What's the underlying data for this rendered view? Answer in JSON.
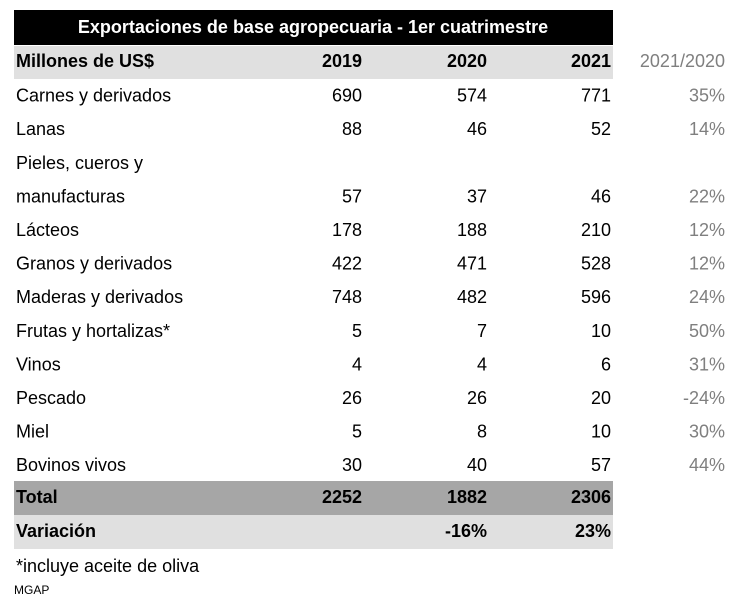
{
  "title": "Exportaciones de base agropecuaria - 1er cuatrimestre",
  "table": {
    "header": {
      "label": "Millones de US$",
      "y2019": "2019",
      "y2020": "2020",
      "y2021": "2021",
      "ratio": "2021/2020"
    },
    "rows": [
      {
        "label": [
          "Carnes y derivados"
        ],
        "y2019": "690",
        "y2020": "574",
        "y2021": "771",
        "ratio": "35%"
      },
      {
        "label": [
          "Lanas"
        ],
        "y2019": "88",
        "y2020": "46",
        "y2021": "52",
        "ratio": "14%"
      },
      {
        "label": [
          "Pieles, cueros y",
          "manufacturas"
        ],
        "y2019": "57",
        "y2020": "37",
        "y2021": "46",
        "ratio": "22%"
      },
      {
        "label": [
          "Lácteos"
        ],
        "y2019": "178",
        "y2020": "188",
        "y2021": "210",
        "ratio": "12%"
      },
      {
        "label": [
          "Granos y derivados"
        ],
        "y2019": "422",
        "y2020": "471",
        "y2021": "528",
        "ratio": "12%"
      },
      {
        "label": [
          "Maderas y derivados"
        ],
        "y2019": "748",
        "y2020": "482",
        "y2021": "596",
        "ratio": "24%"
      },
      {
        "label": [
          "Frutas y hortalizas*"
        ],
        "y2019": "5",
        "y2020": "7",
        "y2021": "10",
        "ratio": "50%"
      },
      {
        "label": [
          "Vinos"
        ],
        "y2019": "4",
        "y2020": "4",
        "y2021": "6",
        "ratio": "31%"
      },
      {
        "label": [
          "Pescado"
        ],
        "y2019": "26",
        "y2020": "26",
        "y2021": "20",
        "ratio": "-24%"
      },
      {
        "label": [
          "Miel"
        ],
        "y2019": "5",
        "y2020": "8",
        "y2021": "10",
        "ratio": "30%"
      },
      {
        "label": [
          "Bovinos vivos"
        ],
        "y2019": "30",
        "y2020": "40",
        "y2021": "57",
        "ratio": "44%"
      }
    ],
    "total": {
      "label": "Total",
      "y2019": "2252",
      "y2020": "1882",
      "y2021": "2306"
    },
    "variation": {
      "label": "Variación",
      "y2020": "-16%",
      "y2021": "23%"
    }
  },
  "footnote": "*incluye aceite de oliva",
  "source": "MGAP"
}
